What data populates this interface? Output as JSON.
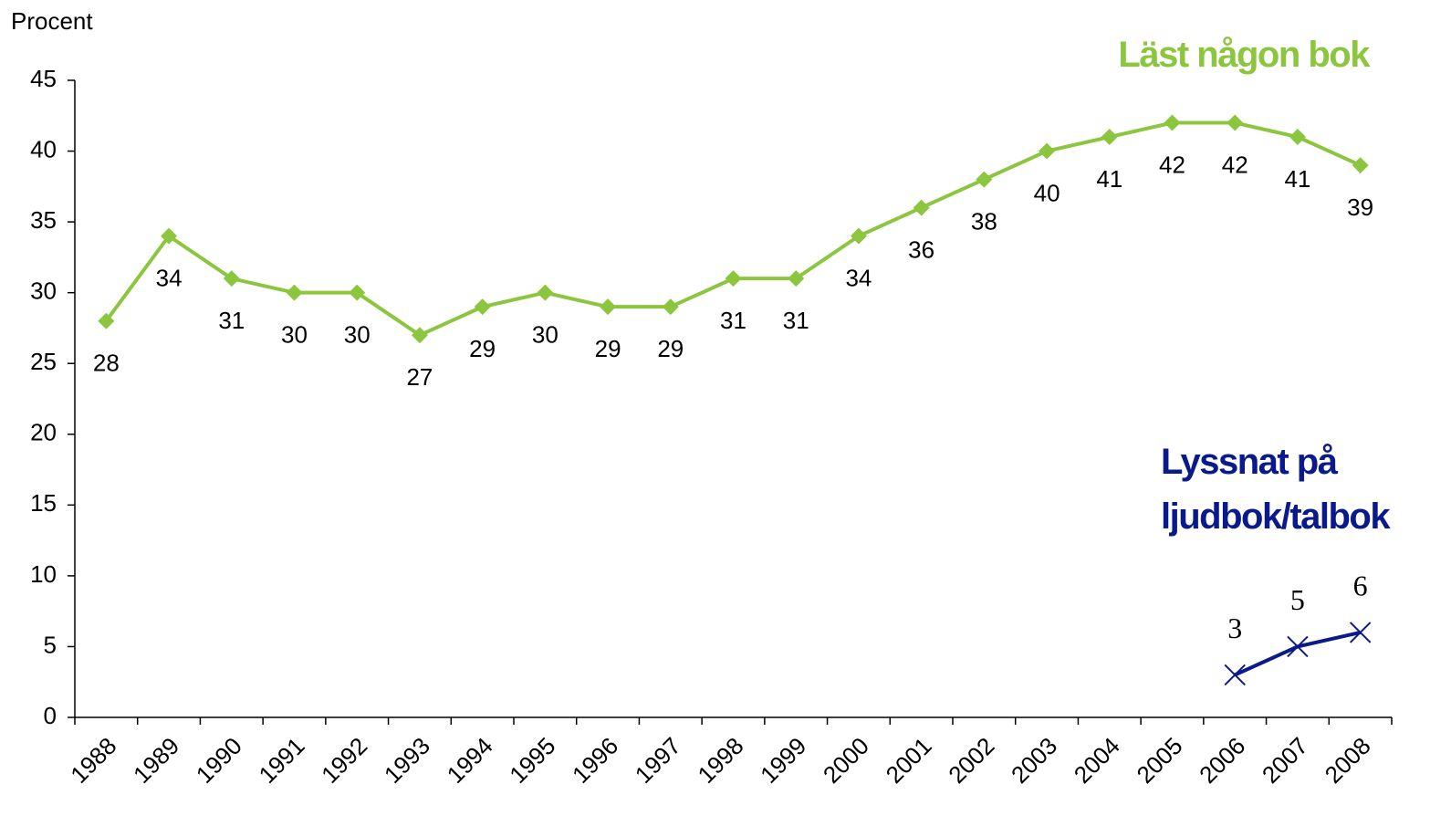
{
  "chart_data": {
    "type": "line",
    "ylabel": "Procent",
    "categories": [
      "1988",
      "1989",
      "1990",
      "1991",
      "1992",
      "1993",
      "1994",
      "1995",
      "1996",
      "1997",
      "1998",
      "1999",
      "2000",
      "2001",
      "2002",
      "2003",
      "2004",
      "2005",
      "2006",
      "2007",
      "2008"
    ],
    "series": [
      {
        "name": "Läst någon bok",
        "color": "#8cc63f",
        "marker": "diamond",
        "label_position": "below",
        "values": [
          28,
          34,
          31,
          30,
          30,
          27,
          29,
          30,
          29,
          29,
          31,
          31,
          34,
          36,
          38,
          40,
          41,
          42,
          42,
          41,
          39
        ]
      },
      {
        "name": "Lyssnat på ljudbok/talbok",
        "color": "#0a1a8a",
        "marker": "x",
        "label_position": "above",
        "values": [
          null,
          null,
          null,
          null,
          null,
          null,
          null,
          null,
          null,
          null,
          null,
          null,
          null,
          null,
          null,
          null,
          null,
          null,
          3,
          5,
          6
        ]
      }
    ],
    "ylim": [
      0,
      45
    ],
    "yticks": [
      0,
      5,
      10,
      15,
      20,
      25,
      30,
      35,
      40,
      45
    ]
  }
}
